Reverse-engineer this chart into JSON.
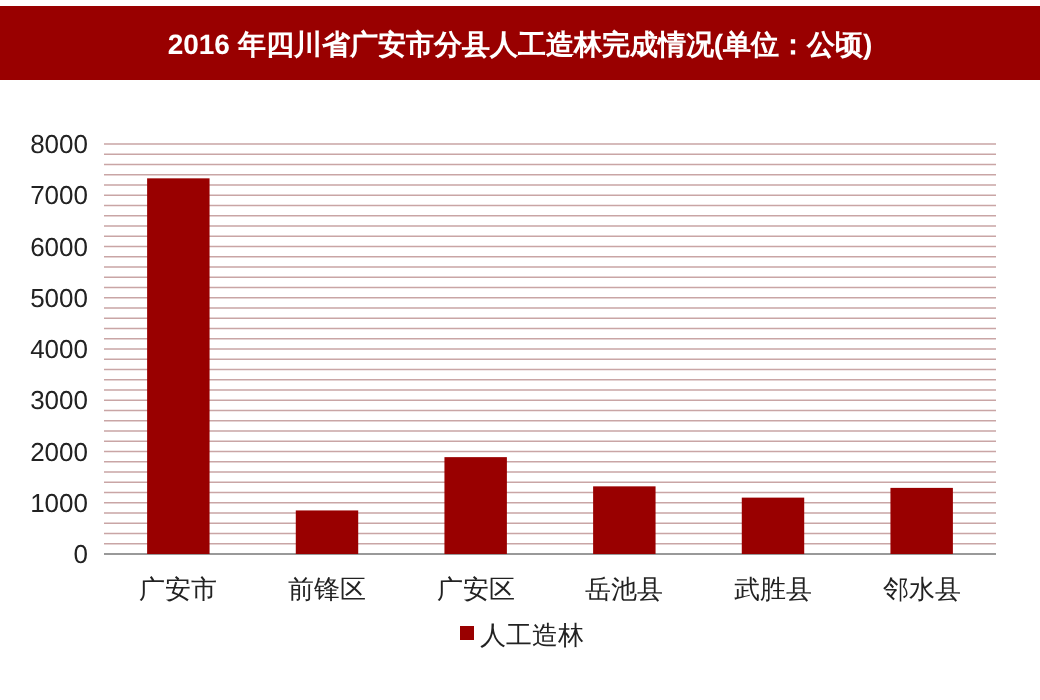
{
  "chart_data": {
    "type": "bar",
    "title": "2016 年四川省广安市分县人工造林完成情况(单位：公顷)",
    "categories": [
      "广安市",
      "前锋区",
      "广安区",
      "岳池县",
      "武胜县",
      "邻水县"
    ],
    "series": [
      {
        "name": "人工造林",
        "color": "#990000",
        "values": [
          7330,
          850,
          1890,
          1320,
          1100,
          1290
        ]
      }
    ],
    "ylim": [
      0,
      8000
    ],
    "yticks": [
      0,
      {
        "value": 200,
        "label": null
      },
      {
        "value": 400,
        "label": null
      },
      {
        "value": 600,
        "label": null
      },
      {
        "value": 800,
        "label": null
      },
      1000,
      {
        "value": 1200,
        "label": null
      },
      {
        "value": 1400,
        "label": null
      },
      {
        "value": 1600,
        "label": null
      },
      {
        "value": 1800,
        "label": null
      },
      2000,
      {
        "value": 2200,
        "label": null
      },
      {
        "value": 2400,
        "label": null
      },
      {
        "value": 2600,
        "label": null
      },
      {
        "value": 2800,
        "label": null
      },
      3000,
      {
        "value": 3200,
        "label": null
      },
      {
        "value": 3400,
        "label": null
      },
      {
        "value": 3600,
        "label": null
      },
      {
        "value": 3800,
        "label": null
      },
      4000,
      {
        "value": 4200,
        "label": null
      },
      {
        "value": 4400,
        "label": null
      },
      {
        "value": 4600,
        "label": null
      },
      {
        "value": 4800,
        "label": null
      },
      5000,
      {
        "value": 5200,
        "label": null
      },
      {
        "value": 5400,
        "label": null
      },
      {
        "value": 5600,
        "label": null
      },
      {
        "value": 5800,
        "label": null
      },
      6000,
      {
        "value": 6200,
        "label": null
      },
      {
        "value": 6400,
        "label": null
      },
      {
        "value": 6600,
        "label": null
      },
      {
        "value": 6800,
        "label": null
      },
      7000,
      {
        "value": 7200,
        "label": null
      },
      {
        "value": 7400,
        "label": null
      },
      {
        "value": 7600,
        "label": null
      },
      {
        "value": 7800,
        "label": null
      },
      8000
    ],
    "grid": "y",
    "legend": "bottom"
  }
}
